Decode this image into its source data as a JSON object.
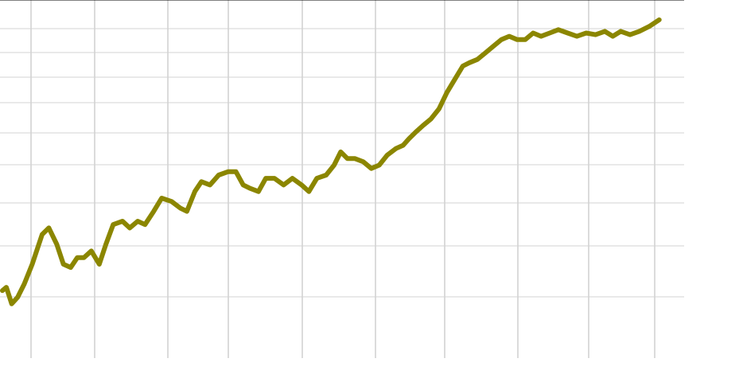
{
  "chart_data": {
    "type": "line",
    "title": "",
    "xlabel": "",
    "ylabel": "",
    "grid": true,
    "xlim": [
      0,
      1000
    ],
    "ylim": [
      0,
      1000
    ],
    "series": [
      {
        "color": "#8b8600",
        "points": [
          [
            0,
            120
          ],
          [
            6,
            130
          ],
          [
            14,
            80
          ],
          [
            23,
            100
          ],
          [
            33,
            140
          ],
          [
            45,
            200
          ],
          [
            60,
            290
          ],
          [
            70,
            310
          ],
          [
            82,
            260
          ],
          [
            92,
            200
          ],
          [
            103,
            190
          ],
          [
            113,
            220
          ],
          [
            123,
            220
          ],
          [
            134,
            240
          ],
          [
            146,
            200
          ],
          [
            156,
            260
          ],
          [
            167,
            320
          ],
          [
            181,
            330
          ],
          [
            192,
            310
          ],
          [
            204,
            330
          ],
          [
            215,
            320
          ],
          [
            228,
            360
          ],
          [
            240,
            400
          ],
          [
            255,
            390
          ],
          [
            268,
            370
          ],
          [
            278,
            360
          ],
          [
            290,
            420
          ],
          [
            300,
            450
          ],
          [
            313,
            440
          ],
          [
            326,
            470
          ],
          [
            340,
            480
          ],
          [
            352,
            480
          ],
          [
            363,
            440
          ],
          [
            373,
            430
          ],
          [
            386,
            420
          ],
          [
            397,
            460
          ],
          [
            410,
            460
          ],
          [
            424,
            440
          ],
          [
            437,
            460
          ],
          [
            451,
            440
          ],
          [
            462,
            420
          ],
          [
            474,
            460
          ],
          [
            488,
            470
          ],
          [
            500,
            500
          ],
          [
            510,
            540
          ],
          [
            520,
            520
          ],
          [
            531,
            520
          ],
          [
            544,
            510
          ],
          [
            556,
            490
          ],
          [
            568,
            500
          ],
          [
            580,
            530
          ],
          [
            593,
            550
          ],
          [
            604,
            560
          ],
          [
            613,
            580
          ],
          [
            623,
            600
          ],
          [
            634,
            620
          ],
          [
            646,
            640
          ],
          [
            658,
            670
          ],
          [
            670,
            720
          ],
          [
            682,
            760
          ],
          [
            694,
            800
          ],
          [
            704,
            810
          ],
          [
            716,
            820
          ],
          [
            728,
            840
          ],
          [
            740,
            860
          ],
          [
            752,
            880
          ],
          [
            764,
            890
          ],
          [
            776,
            880
          ],
          [
            788,
            880
          ],
          [
            800,
            900
          ],
          [
            812,
            890
          ],
          [
            825,
            900
          ],
          [
            838,
            910
          ],
          [
            852,
            900
          ],
          [
            866,
            890
          ],
          [
            880,
            900
          ],
          [
            894,
            895
          ],
          [
            908,
            905
          ],
          [
            920,
            890
          ],
          [
            932,
            905
          ],
          [
            946,
            895
          ],
          [
            960,
            905
          ],
          [
            975,
            920
          ],
          [
            990,
            940
          ]
        ]
      }
    ]
  }
}
